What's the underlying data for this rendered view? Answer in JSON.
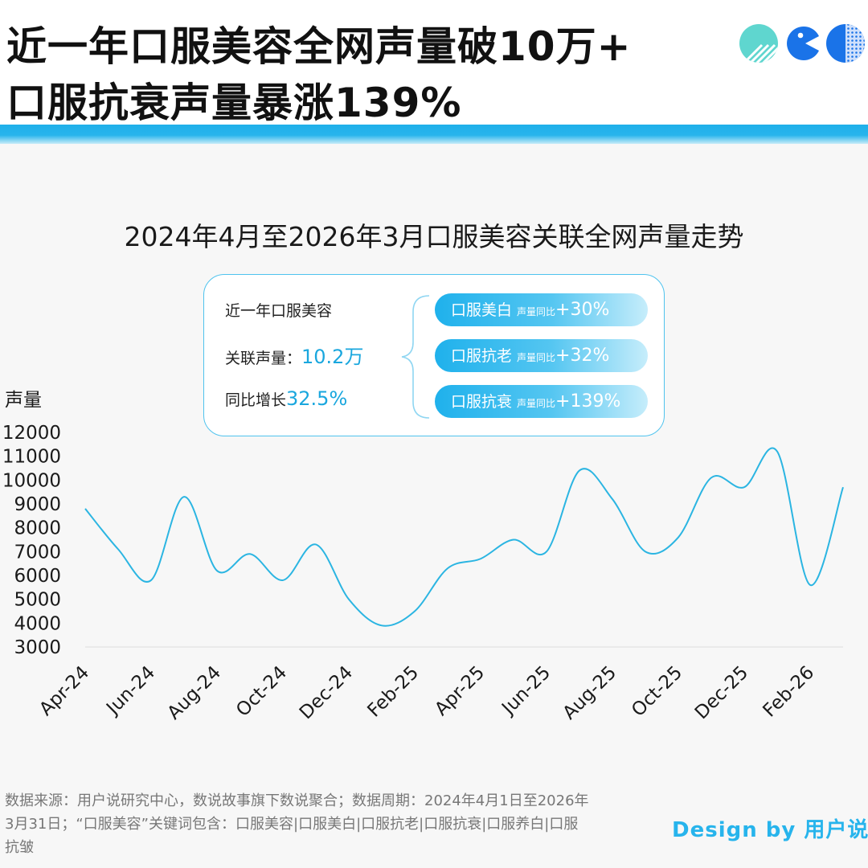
{
  "header": {
    "title_line1": "近一年口服美容全网声量破10万+",
    "title_line2": "口服抗衰声量暴涨139%"
  },
  "summary": {
    "label1": "近一年口服美容",
    "label2": "关联声量：",
    "value2": "10.2万",
    "label3": "同比增长",
    "value3": "32.5%",
    "pills": [
      {
        "name": "口服美白",
        "sub": "声量同比",
        "pct": "+30%"
      },
      {
        "name": "口服抗老",
        "sub": "声量同比",
        "pct": "+32%"
      },
      {
        "name": "口服抗衰",
        "sub": "声量同比",
        "pct": "+139%"
      }
    ]
  },
  "footer": {
    "note": "数据来源：用户说研究中心，数说故事旗下数说聚合；数据周期：2024年4月1日至2026年3月31日；“口服美容”关键词包含：口服美容|口服美白|口服抗老|口服抗衰|口服养白|口服抗皱",
    "credit": "Design by 用户说"
  },
  "colors": {
    "accent": "#1fb0ea",
    "line": "#2bb5e2",
    "grid": "#dddddd"
  },
  "chart_data": {
    "type": "line",
    "title": "2024年4月至2026年3月口服美容关联全网声量走势",
    "ylabel": "声量",
    "xlabel": "",
    "ylim": [
      3000,
      12000
    ],
    "yticks": [
      3000,
      4000,
      5000,
      6000,
      7000,
      8000,
      9000,
      10000,
      11000,
      12000
    ],
    "x": [
      "Apr-24",
      "May-24",
      "Jun-24",
      "Jul-24",
      "Aug-24",
      "Sep-24",
      "Oct-24",
      "Nov-24",
      "Dec-24",
      "Jan-25",
      "Feb-25",
      "Mar-25",
      "Apr-25",
      "May-25",
      "Jun-25",
      "Jul-25",
      "Aug-25",
      "Sep-25",
      "Oct-25",
      "Nov-25",
      "Dec-25",
      "Jan-26",
      "Feb-26",
      "Mar-26"
    ],
    "xtick_labels": [
      "Apr-24",
      "Jun-24",
      "Aug-24",
      "Oct-24",
      "Dec-24",
      "Feb-25",
      "Apr-25",
      "Jun-25",
      "Aug-25",
      "Oct-25",
      "Dec-25",
      "Feb-26"
    ],
    "series": [
      {
        "values": [
          8800,
          7100,
          5800,
          9300,
          6200,
          6900,
          5800,
          7300,
          5000,
          3900,
          4500,
          6300,
          6700,
          7500,
          7000,
          10400,
          9200,
          7000,
          7600,
          10100,
          9700,
          11200,
          5600,
          9700
        ]
      }
    ],
    "grid": false
  }
}
